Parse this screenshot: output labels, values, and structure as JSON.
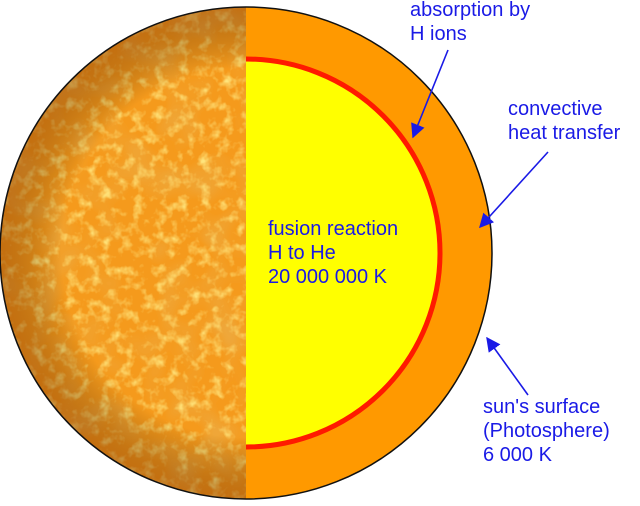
{
  "colors": {
    "outer_shell": "#ff9900",
    "core": "#ffff00",
    "core_boundary": "#ff1a00",
    "surface_texture_base": "#f59a1c",
    "surface_texture_dark": "#e0700c",
    "surface_texture_light": "#ffd84a",
    "outline": "#111111",
    "annotation": "#1a1ae6"
  },
  "labels": {
    "absorption": {
      "line1": "absorption by",
      "line2": "H ions"
    },
    "convective": {
      "line1": "convective",
      "line2": "heat transfer"
    },
    "fusion": {
      "line1": "fusion reaction",
      "line2": "H to He",
      "line3": "20 000 000 K"
    },
    "surface": {
      "line1": "sun's surface",
      "line2": "(Photosphere)",
      "line3": "6 000 K"
    }
  }
}
